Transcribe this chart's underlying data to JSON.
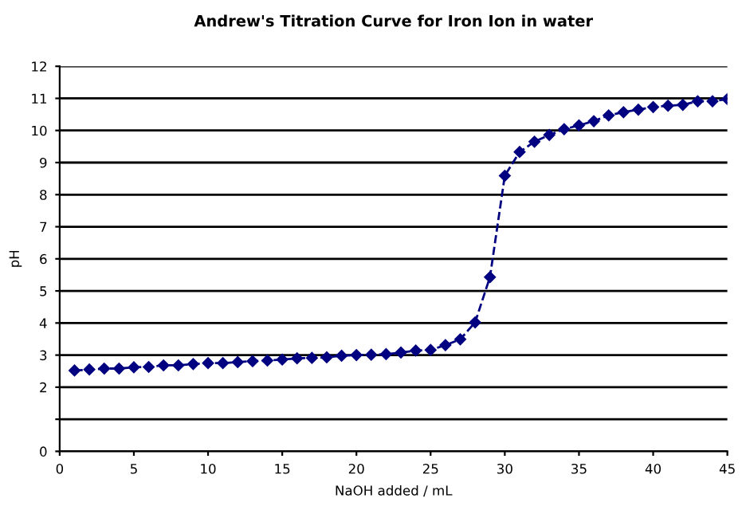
{
  "chart_data": {
    "type": "line",
    "title": "Andrew's Titration Curve for Iron Ion in water",
    "xlabel": "NaOH added / mL",
    "ylabel": "pH",
    "x": [
      1,
      2,
      3,
      4,
      5,
      6,
      7,
      8,
      9,
      10,
      11,
      12,
      13,
      14,
      15,
      16,
      17,
      18,
      19,
      20,
      21,
      22,
      23,
      24,
      25,
      26,
      27,
      28,
      29,
      30,
      31,
      32,
      33,
      34,
      35,
      36,
      37,
      38,
      39,
      40,
      41,
      42,
      43,
      44,
      45
    ],
    "series": [
      {
        "color": "#000080",
        "values": [
          2.52,
          2.55,
          2.58,
          2.58,
          2.62,
          2.63,
          2.68,
          2.68,
          2.72,
          2.75,
          2.75,
          2.78,
          2.81,
          2.83,
          2.86,
          2.9,
          2.91,
          2.93,
          2.98,
          3.0,
          3.01,
          3.03,
          3.08,
          3.14,
          3.16,
          3.31,
          3.49,
          4.02,
          5.43,
          8.59,
          9.33,
          9.65,
          9.86,
          10.04,
          10.16,
          10.29,
          10.47,
          10.57,
          10.65,
          10.73,
          10.77,
          10.8,
          10.91,
          10.91,
          10.98
        ]
      }
    ],
    "xlim": [
      0,
      45
    ],
    "xticks": [
      0,
      5,
      10,
      15,
      20,
      25,
      30,
      35,
      40,
      45
    ],
    "ylim": [
      0,
      12
    ],
    "yticks": [
      0,
      {
        "value": 1,
        "label": null
      },
      2,
      3,
      4,
      5,
      6,
      7,
      8,
      9,
      10,
      11,
      12
    ],
    "grid": "y",
    "marker": "diamond",
    "line_style": "dashed"
  }
}
